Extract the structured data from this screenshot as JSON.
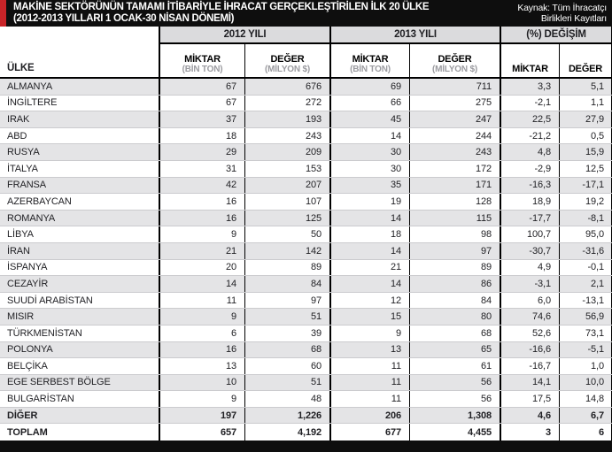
{
  "header": {
    "title_line1": "MAKİNE SEKTÖRÜNÜN TAMAMI İTİBARİYLE İHRACAT GERÇEKLEŞTİRİLEN İLK 20 ÜLKE",
    "title_line2": "(2012-2013 YILLARI 1 OCAK-30 NİSAN DÖNEMİ)",
    "source_line1": "Kaynak: Tüm İhracatçı",
    "source_line2": "Birlikleri Kayıtları"
  },
  "table_header": {
    "country": "ÜLKE",
    "cells": [
      {
        "label": "MİKTAR",
        "sub": "(BİN TON)"
      },
      {
        "label": "DEĞER",
        "sub": "(MİLYON $)"
      },
      {
        "label": "MİKTAR",
        "sub": "(BİN TON)"
      },
      {
        "label": "DEĞER",
        "sub": "(MİLYON $)"
      },
      {
        "label": "MİKTAR",
        "sub": ""
      },
      {
        "label": "DEĞER",
        "sub": ""
      }
    ]
  },
  "colors": {
    "accent_red": "#c92428",
    "bar_black": "#0e0e0e",
    "group_header_gray": "#dbdbdd",
    "alt_row_gray": "#e4e4e6",
    "sub_label_gray": "#9b9ba0"
  },
  "chart_data": {
    "type": "table",
    "title": "MAKİNE SEKTÖRÜNÜN TAMAMI İTİBARİYLE İHRACAT GERÇEKLEŞTİRİLEN İLK 20 ÜLKE (2012-2013 YILLARI 1 OCAK-30 NİSAN DÖNEMİ)",
    "source": "Kaynak: Tüm İhracatçı Birlikleri Kayıtları",
    "column_groups": [
      "2012 YILI",
      "2013 YILI",
      "(%) DEĞİŞİM"
    ],
    "columns": [
      "ÜLKE",
      "2012 MİKTAR (BİN TON)",
      "2012 DEĞER (MİLYON $)",
      "2013 MİKTAR (BİN TON)",
      "2013 DEĞER (MİLYON $)",
      "(%) DEĞİŞİM MİKTAR",
      "(%) DEĞİŞİM DEĞER"
    ],
    "rows": [
      [
        "ALMANYA",
        "67",
        "676",
        "69",
        "711",
        "3,3",
        "5,1"
      ],
      [
        "İNGİLTERE",
        "67",
        "272",
        "66",
        "275",
        "-2,1",
        "1,1"
      ],
      [
        "IRAK",
        "37",
        "193",
        "45",
        "247",
        "22,5",
        "27,9"
      ],
      [
        "ABD",
        "18",
        "243",
        "14",
        "244",
        "-21,2",
        "0,5"
      ],
      [
        "RUSYA",
        "29",
        "209",
        "30",
        "243",
        "4,8",
        "15,9"
      ],
      [
        "İTALYA",
        "31",
        "153",
        "30",
        "172",
        "-2,9",
        "12,5"
      ],
      [
        "FRANSA",
        "42",
        "207",
        "35",
        "171",
        "-16,3",
        "-17,1"
      ],
      [
        "AZERBAYCAN",
        "16",
        "107",
        "19",
        "128",
        "18,9",
        "19,2"
      ],
      [
        "ROMANYA",
        "16",
        "125",
        "14",
        "115",
        "-17,7",
        "-8,1"
      ],
      [
        "LİBYA",
        "9",
        "50",
        "18",
        "98",
        "100,7",
        "95,0"
      ],
      [
        "İRAN",
        "21",
        "142",
        "14",
        "97",
        "-30,7",
        "-31,6"
      ],
      [
        "İSPANYA",
        "20",
        "89",
        "21",
        "89",
        "4,9",
        "-0,1"
      ],
      [
        "CEZAYİR",
        "14",
        "84",
        "14",
        "86",
        "-3,1",
        "2,1"
      ],
      [
        "SUUDİ ARABİSTAN",
        "11",
        "97",
        "12",
        "84",
        "6,0",
        "-13,1"
      ],
      [
        "MISIR",
        "9",
        "51",
        "15",
        "80",
        "74,6",
        "56,9"
      ],
      [
        "TÜRKMENİSTAN",
        "6",
        "39",
        "9",
        "68",
        "52,6",
        "73,1"
      ],
      [
        "POLONYA",
        "16",
        "68",
        "13",
        "65",
        "-16,6",
        "-5,1"
      ],
      [
        "BELÇİKA",
        "13",
        "60",
        "11",
        "61",
        "-16,7",
        "1,0"
      ],
      [
        "EGE SERBEST BÖLGE",
        "10",
        "51",
        "11",
        "56",
        "14,1",
        "10,0"
      ],
      [
        "BULGARİSTAN",
        "9",
        "48",
        "11",
        "56",
        "17,5",
        "14,8"
      ],
      [
        "DİĞER",
        "197",
        "1,226",
        "206",
        "1,308",
        "4,6",
        "6,7"
      ],
      [
        "TOPLAM",
        "657",
        "4,192",
        "677",
        "4,455",
        "3",
        "6"
      ]
    ],
    "bold_rows": [
      "DİĞER",
      "TOPLAM"
    ],
    "layout": {
      "striped": true,
      "first_row_shaded": true,
      "value_alignment": "right"
    }
  }
}
